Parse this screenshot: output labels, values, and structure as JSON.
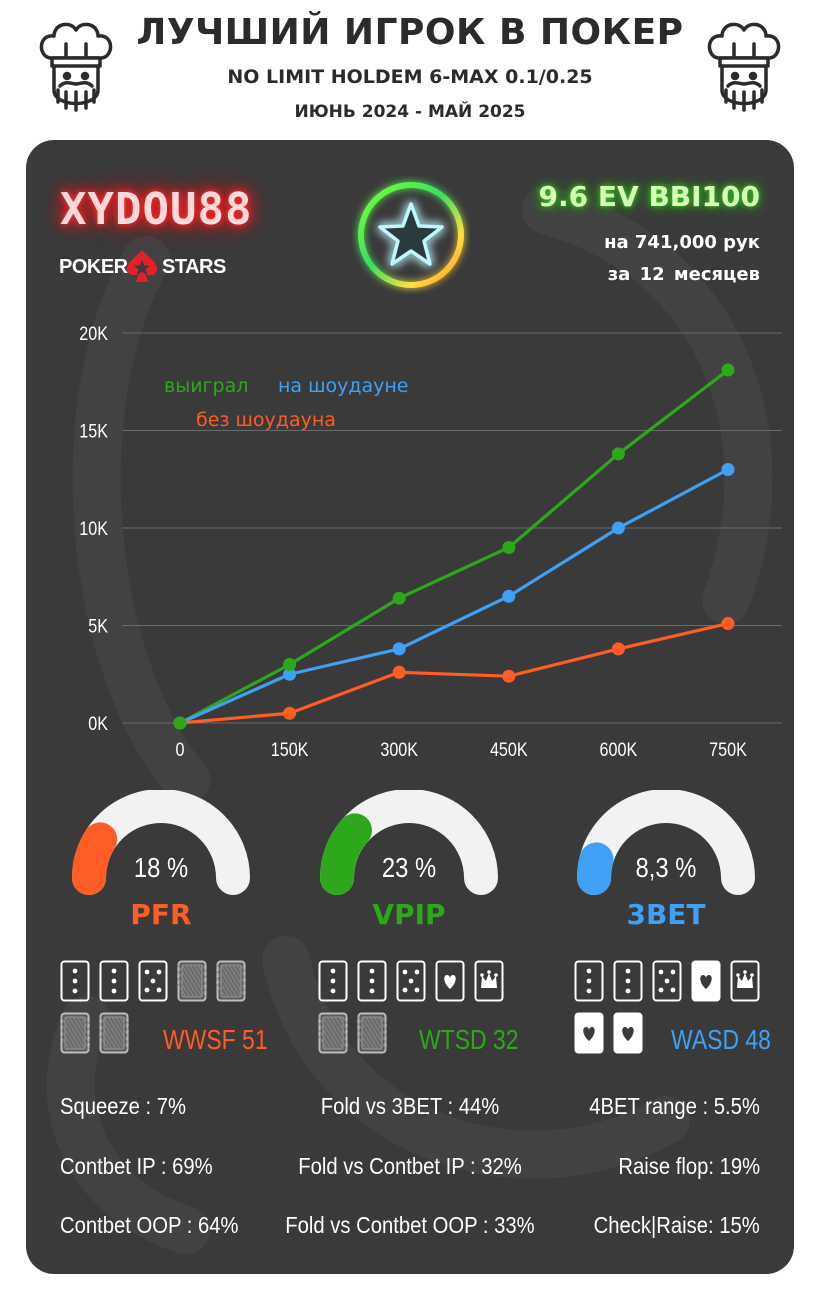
{
  "header": {
    "title": "ЛУЧШИЙ ИГРОК В ПОКЕР",
    "subtitle": "NO LIMIT HOLDEM 6-MAX 0.1/0.25",
    "period": "ИЮНЬ 2024 - МАЙ 2025"
  },
  "player": {
    "name": "XYDOU88",
    "room_left": "POKER",
    "room_right": "STARS",
    "ev": "9.6 EV BBI100",
    "hands": "на 741,000 рук",
    "months": "за  12 месяцев"
  },
  "colors": {
    "green": "#2ca81a",
    "blue": "#3fa0f5",
    "orange": "#ff5c26",
    "panel": "#3a3a3b",
    "gauge_track": "#f2f2f0"
  },
  "chart_data": {
    "type": "line",
    "x": [
      0,
      150000,
      300000,
      450000,
      600000,
      750000
    ],
    "x_tick_labels": [
      "0",
      "150K",
      "300K",
      "450K",
      "600K",
      "750K"
    ],
    "y_tick_labels": [
      "0K",
      "5K",
      "10K",
      "15K",
      "20K"
    ],
    "y_ticks": [
      0,
      5000,
      10000,
      15000,
      20000
    ],
    "ylim": [
      0,
      20000
    ],
    "xlim": [
      0,
      750000
    ],
    "grid": true,
    "series": [
      {
        "name": "выиграл",
        "color": "#2ca81a",
        "values": [
          0,
          3000,
          6400,
          9000,
          13800,
          18100
        ]
      },
      {
        "name": "на шоудауне",
        "color": "#3fa0f5",
        "values": [
          0,
          2500,
          3800,
          6500,
          10000,
          13000
        ]
      },
      {
        "name": "без шоудауна",
        "color": "#ff5c26",
        "values": [
          0,
          500,
          2600,
          2400,
          3800,
          5100
        ]
      }
    ]
  },
  "gauges": [
    {
      "value_text": "18 %",
      "label": "PFR",
      "percent": 18,
      "color": "#ff5c26"
    },
    {
      "value_text": "23 %",
      "label": "VPIP",
      "percent": 23,
      "color": "#2ca81a"
    },
    {
      "value_text": "8,3 %",
      "label": "3BET",
      "percent": 8.3,
      "color": "#3fa0f5"
    }
  ],
  "card_stats": [
    {
      "label": "WWSF 51",
      "color": "#ff5c26"
    },
    {
      "label": "WTSD 32",
      "color": "#2ca81a"
    },
    {
      "label": "WASD 48",
      "color": "#3fa0f5"
    }
  ],
  "stats": [
    [
      "Squeeze : 7%",
      "Fold vs 3BET : 44%",
      "4BET range : 5.5%"
    ],
    [
      "Contbet IP : 69%",
      "Fold vs Contbet IP : 32%",
      "Raise flop: 19%"
    ],
    [
      "Contbet OOP : 64%",
      "Fold vs Contbet OOP : 33%",
      "Check|Raise: 15%"
    ]
  ]
}
